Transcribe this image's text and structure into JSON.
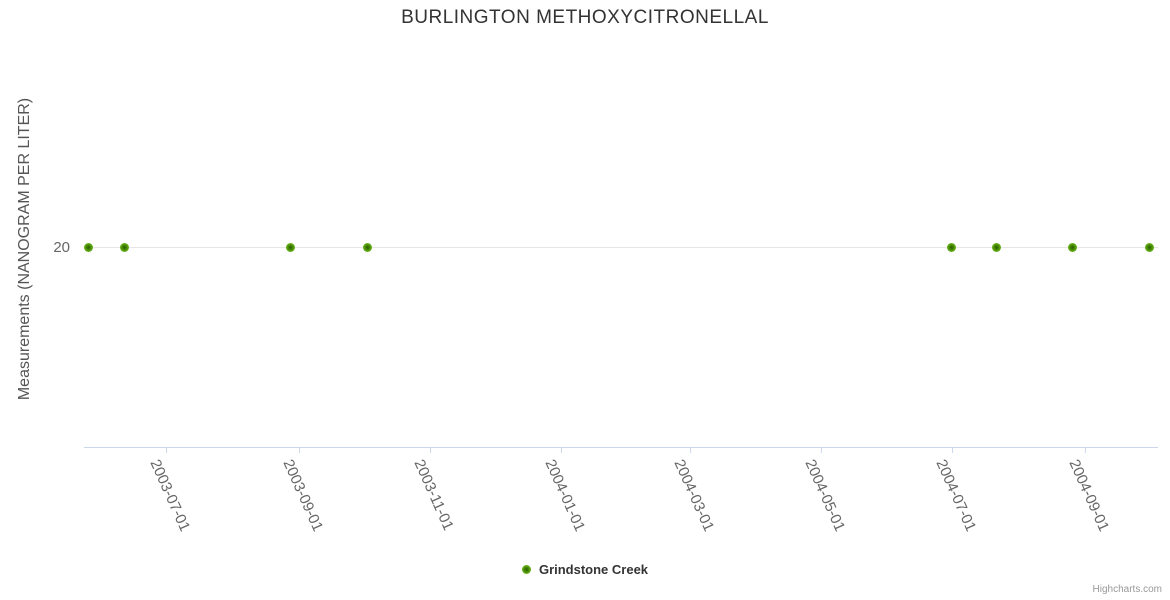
{
  "credit": "Highcharts.com",
  "colors": {
    "series_green": "#5ea812",
    "grid": "#e6e6e6",
    "axis": "#ccd6eb",
    "title_text": "#333333",
    "axis_label_text": "#666666",
    "legend_text": "#333333",
    "credit_text": "#999999"
  },
  "chart_data": {
    "type": "scatter",
    "title": "BURLINGTON METHOXYCITRONELLAL",
    "xlabel": "",
    "ylabel": "Measurements (NANOGRAM PER LITER)",
    "x_type": "datetime",
    "xlim": [
      "2003-05-24",
      "2004-10-05"
    ],
    "ylim": [
      0,
      40
    ],
    "y_ticks": [
      20
    ],
    "x_ticks": [
      "2003-07-01",
      "2003-09-01",
      "2003-11-01",
      "2004-01-01",
      "2004-03-01",
      "2004-05-01",
      "2004-07-01",
      "2004-09-01"
    ],
    "grid": "horizontal-only",
    "legend_position": "bottom-center",
    "series": [
      {
        "name": "Grindstone Creek",
        "color": "#5ea812",
        "points": [
          {
            "x": "2003-05-26",
            "y": 20
          },
          {
            "x": "2003-06-12",
            "y": 20
          },
          {
            "x": "2003-08-28",
            "y": 20
          },
          {
            "x": "2003-10-03",
            "y": 20
          },
          {
            "x": "2004-07-01",
            "y": 20
          },
          {
            "x": "2004-07-22",
            "y": 20
          },
          {
            "x": "2004-08-26",
            "y": 20
          },
          {
            "x": "2004-10-01",
            "y": 20
          }
        ]
      }
    ]
  }
}
